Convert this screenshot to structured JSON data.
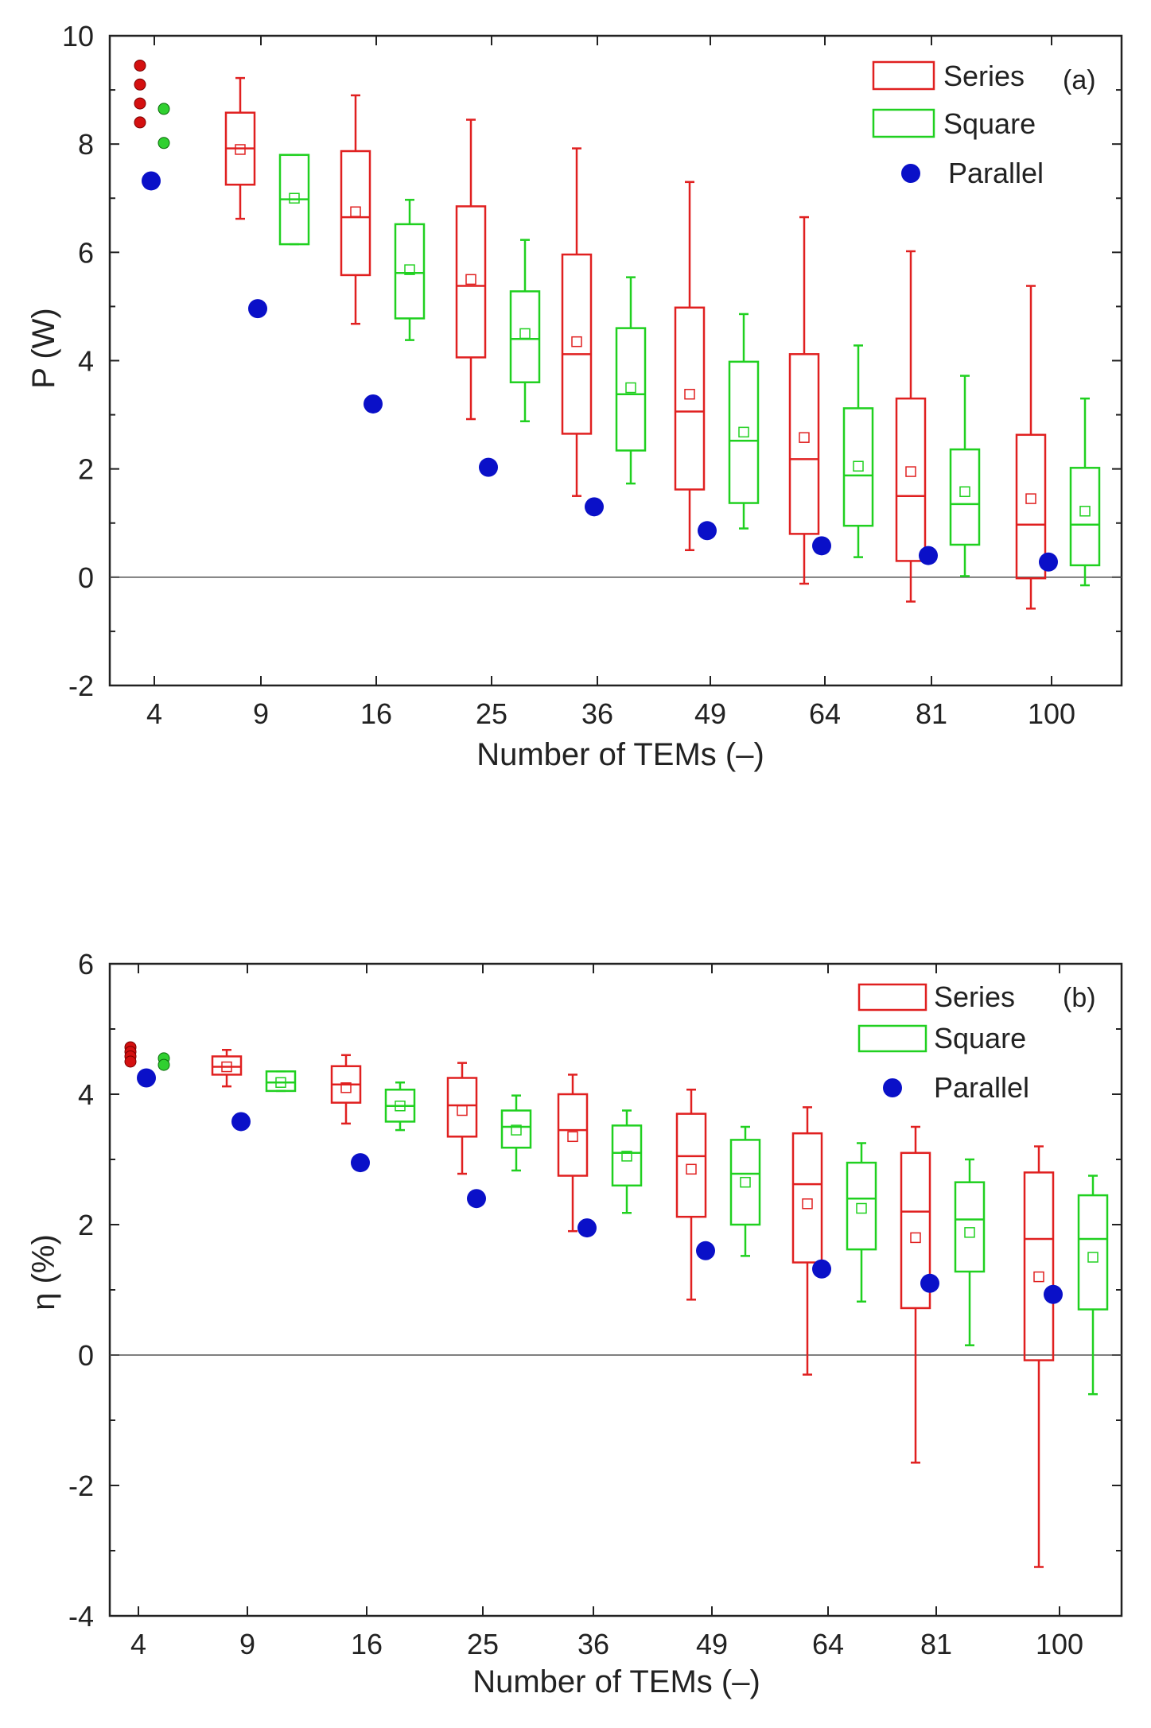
{
  "chart_data": [
    {
      "type": "box",
      "panel_label": "(a)",
      "title": "",
      "xlabel": "Number of TEMs (–)",
      "ylabel": "P (W)",
      "ylim": [
        -2,
        10
      ],
      "yticks": [
        -2,
        0,
        2,
        4,
        6,
        8,
        10
      ],
      "categories": [
        "4",
        "9",
        "16",
        "25",
        "36",
        "49",
        "64",
        "81",
        "100"
      ],
      "legend": [
        "Series",
        "Square",
        "Parallel"
      ],
      "colors": {
        "series": "#e02020",
        "square": "#20d020",
        "parallel": "#0a10c8",
        "series_dot": "#d41010",
        "square_dot": "#30d030"
      },
      "series_points_n4": [
        9.45,
        9.1,
        8.75,
        8.4
      ],
      "square_points_n4": [
        8.65,
        8.02
      ],
      "series_boxes": [
        {
          "category": "9",
          "min": 6.62,
          "q1": 7.25,
          "median": 7.92,
          "q3": 8.58,
          "max": 9.22,
          "mean": 7.9
        },
        {
          "category": "16",
          "min": 4.68,
          "q1": 5.58,
          "median": 6.65,
          "q3": 7.87,
          "max": 8.9,
          "mean": 6.75
        },
        {
          "category": "25",
          "min": 2.92,
          "q1": 4.06,
          "median": 5.38,
          "q3": 6.85,
          "max": 8.45,
          "mean": 5.5
        },
        {
          "category": "36",
          "min": 1.5,
          "q1": 2.65,
          "median": 4.12,
          "q3": 5.96,
          "max": 7.92,
          "mean": 4.35
        },
        {
          "category": "49",
          "min": 0.5,
          "q1": 1.62,
          "median": 3.06,
          "q3": 4.98,
          "max": 7.3,
          "mean": 3.38
        },
        {
          "category": "64",
          "min": -0.12,
          "q1": 0.8,
          "median": 2.18,
          "q3": 4.12,
          "max": 6.65,
          "mean": 2.58
        },
        {
          "category": "81",
          "min": -0.45,
          "q1": 0.3,
          "median": 1.5,
          "q3": 3.3,
          "max": 6.02,
          "mean": 1.95
        },
        {
          "category": "100",
          "min": -0.58,
          "q1": -0.02,
          "median": 0.97,
          "q3": 2.63,
          "max": 5.38,
          "mean": 1.45
        }
      ],
      "square_boxes": [
        {
          "category": "9",
          "min": 6.15,
          "q1": 6.15,
          "median": 6.98,
          "q3": 7.8,
          "max": 7.8,
          "mean": 7.0
        },
        {
          "category": "16",
          "min": 4.38,
          "q1": 4.78,
          "median": 5.62,
          "q3": 6.52,
          "max": 6.97,
          "mean": 5.68
        },
        {
          "category": "25",
          "min": 2.88,
          "q1": 3.6,
          "median": 4.4,
          "q3": 5.28,
          "max": 6.23,
          "mean": 4.5
        },
        {
          "category": "36",
          "min": 1.73,
          "q1": 2.34,
          "median": 3.38,
          "q3": 4.6,
          "max": 5.54,
          "mean": 3.5
        },
        {
          "category": "49",
          "min": 0.9,
          "q1": 1.37,
          "median": 2.52,
          "q3": 3.98,
          "max": 4.86,
          "mean": 2.68
        },
        {
          "category": "64",
          "min": 0.37,
          "q1": 0.95,
          "median": 1.88,
          "q3": 3.12,
          "max": 4.28,
          "mean": 2.05
        },
        {
          "category": "81",
          "min": 0.02,
          "q1": 0.6,
          "median": 1.35,
          "q3": 2.36,
          "max": 3.72,
          "mean": 1.58
        },
        {
          "category": "100",
          "min": -0.15,
          "q1": 0.22,
          "median": 0.97,
          "q3": 2.02,
          "max": 3.3,
          "mean": 1.22
        }
      ],
      "parallel": [
        7.32,
        4.96,
        3.2,
        2.03,
        1.3,
        0.86,
        0.58,
        0.4,
        0.28
      ]
    },
    {
      "type": "box",
      "panel_label": "(b)",
      "title": "",
      "xlabel": "Number of TEMs (–)",
      "ylabel": "η (%)",
      "ylim": [
        -4,
        6
      ],
      "yticks": [
        -4,
        -2,
        0,
        2,
        4,
        6
      ],
      "categories": [
        "4",
        "9",
        "16",
        "25",
        "36",
        "49",
        "64",
        "81",
        "100"
      ],
      "legend": [
        "Series",
        "Square",
        "Parallel"
      ],
      "colors": {
        "series": "#e02020",
        "square": "#20d020",
        "parallel": "#0a10c8",
        "series_dot": "#d41010",
        "square_dot": "#30d030"
      },
      "series_points_n4": [
        4.72,
        4.65,
        4.58,
        4.5
      ],
      "square_points_n4": [
        4.55,
        4.45
      ],
      "series_boxes": [
        {
          "category": "9",
          "min": 4.12,
          "q1": 4.3,
          "median": 4.42,
          "q3": 4.58,
          "max": 4.68,
          "mean": 4.42
        },
        {
          "category": "16",
          "min": 3.55,
          "q1": 3.87,
          "median": 4.15,
          "q3": 4.43,
          "max": 4.6,
          "mean": 4.1
        },
        {
          "category": "25",
          "min": 2.78,
          "q1": 3.35,
          "median": 3.83,
          "q3": 4.25,
          "max": 4.48,
          "mean": 3.75
        },
        {
          "category": "36",
          "min": 1.9,
          "q1": 2.75,
          "median": 3.45,
          "q3": 4.0,
          "max": 4.3,
          "mean": 3.35
        },
        {
          "category": "49",
          "min": 0.85,
          "q1": 2.12,
          "median": 3.05,
          "q3": 3.7,
          "max": 4.07,
          "mean": 2.85
        },
        {
          "category": "64",
          "min": -0.3,
          "q1": 1.42,
          "median": 2.62,
          "q3": 3.4,
          "max": 3.8,
          "mean": 2.32
        },
        {
          "category": "81",
          "min": -1.65,
          "q1": 0.72,
          "median": 2.2,
          "q3": 3.1,
          "max": 3.5,
          "mean": 1.8
        },
        {
          "category": "100",
          "min": -3.25,
          "q1": -0.08,
          "median": 1.78,
          "q3": 2.8,
          "max": 3.2,
          "mean": 1.2
        }
      ],
      "square_boxes": [
        {
          "category": "9",
          "min": 4.05,
          "q1": 4.05,
          "median": 4.18,
          "q3": 4.35,
          "max": 4.35,
          "mean": 4.18
        },
        {
          "category": "16",
          "min": 3.45,
          "q1": 3.58,
          "median": 3.82,
          "q3": 4.07,
          "max": 4.18,
          "mean": 3.82
        },
        {
          "category": "25",
          "min": 2.83,
          "q1": 3.18,
          "median": 3.5,
          "q3": 3.75,
          "max": 3.98,
          "mean": 3.45
        },
        {
          "category": "36",
          "min": 2.18,
          "q1": 2.6,
          "median": 3.1,
          "q3": 3.52,
          "max": 3.75,
          "mean": 3.05
        },
        {
          "category": "49",
          "min": 1.52,
          "q1": 2.0,
          "median": 2.78,
          "q3": 3.3,
          "max": 3.5,
          "mean": 2.65
        },
        {
          "category": "64",
          "min": 0.82,
          "q1": 1.62,
          "median": 2.4,
          "q3": 2.95,
          "max": 3.25,
          "mean": 2.25
        },
        {
          "category": "81",
          "min": 0.15,
          "q1": 1.28,
          "median": 2.08,
          "q3": 2.65,
          "max": 3.0,
          "mean": 1.88
        },
        {
          "category": "100",
          "min": -0.6,
          "q1": 0.7,
          "median": 1.78,
          "q3": 2.45,
          "max": 2.75,
          "mean": 1.5
        }
      ],
      "parallel": [
        4.25,
        3.58,
        2.95,
        2.4,
        1.95,
        1.6,
        1.32,
        1.1,
        0.93
      ]
    }
  ]
}
